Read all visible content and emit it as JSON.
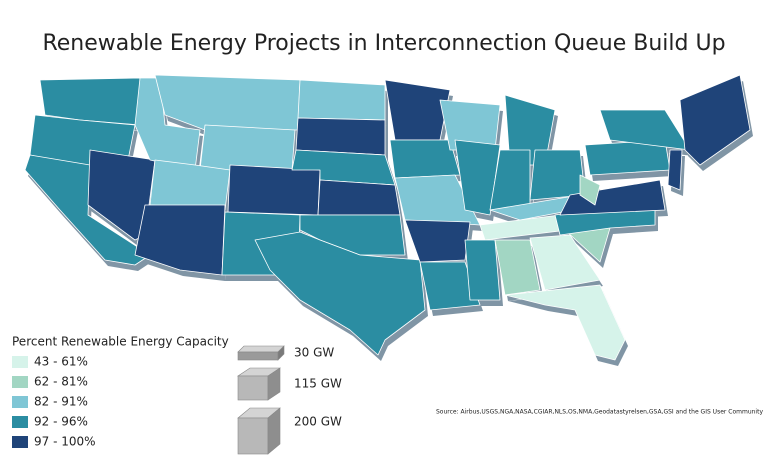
{
  "title": "Renewable Energy Projects in Interconnection Queue Build Up",
  "color_legend": {
    "title": "Percent Renewable Energy Capacity",
    "items": [
      {
        "label": "43 - 61%",
        "color": "#d6f3ea"
      },
      {
        "label": "62 - 81%",
        "color": "#a2d6c3"
      },
      {
        "label": "82 - 91%",
        "color": "#7fc6d5"
      },
      {
        "label": "92 - 96%",
        "color": "#2b8da2"
      },
      {
        "label": "97 - 100%",
        "color": "#1f4479"
      }
    ]
  },
  "size_legend": {
    "items": [
      "30 GW",
      "115 GW",
      "200 GW"
    ]
  },
  "source": "Source: Airbus,USGS,NGA,NASA,CGIAR,NLS,OS,NMA,Geodatastyrelsen,GSA,GSI and the GIS User Community"
}
